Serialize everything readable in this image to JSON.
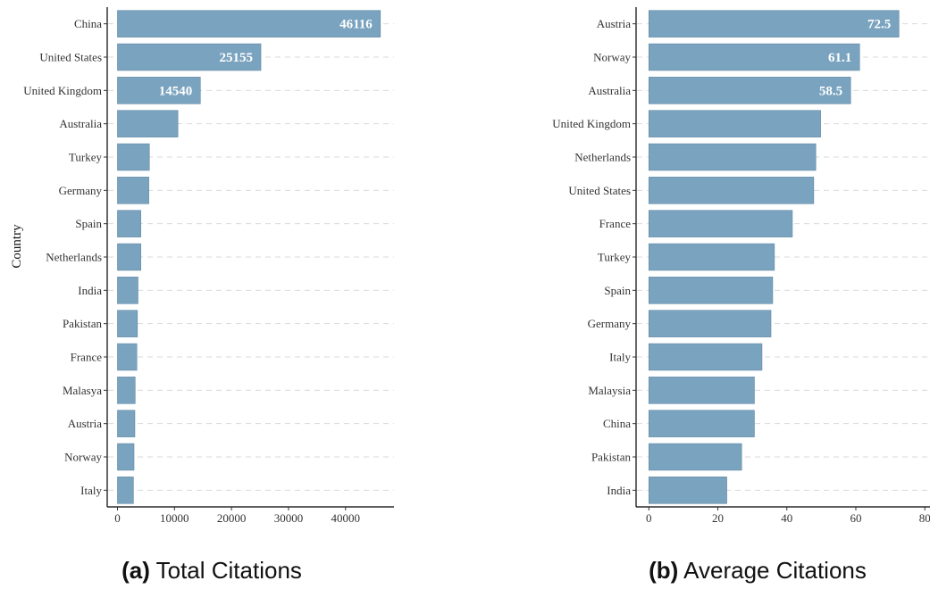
{
  "chart_data": [
    {
      "type": "bar",
      "orientation": "horizontal",
      "ylabel": "Country",
      "xlabel": "",
      "caption_letter": "(a)",
      "caption_text": " Total Citations",
      "categories": [
        "China",
        "United States",
        "United Kingdom",
        "Australia",
        "Turkey",
        "Germany",
        "Spain",
        "Netherlands",
        "India",
        "Pakistan",
        "France",
        "Malasya",
        "Austria",
        "Norway",
        "Italy"
      ],
      "values": [
        46116,
        25155,
        14540,
        10600,
        5600,
        5500,
        4100,
        4100,
        3600,
        3500,
        3400,
        3100,
        3050,
        2900,
        2800
      ],
      "data_labels": [
        "46116",
        "25155",
        "14540",
        "",
        "",
        "",
        "",
        "",
        "",
        "",
        "",
        "",
        "",
        "",
        ""
      ],
      "xticks": [
        0,
        10000,
        20000,
        30000,
        40000
      ],
      "xlim": [
        -1800,
        48500
      ],
      "grid": "horizontal-dashed"
    },
    {
      "type": "bar",
      "orientation": "horizontal",
      "ylabel": "",
      "xlabel": "",
      "caption_letter": "(b)",
      "caption_text": " Average Citations",
      "categories": [
        "Austria",
        "Norway",
        "Australia",
        "United Kingdom",
        "Netherlands",
        "United States",
        "France",
        "Turkey",
        "Spain",
        "Germany",
        "Italy",
        "Malaysia",
        "China",
        "Pakistan",
        "India"
      ],
      "values": [
        72.5,
        61.1,
        58.5,
        49.8,
        48.4,
        47.8,
        41.6,
        36.4,
        35.9,
        35.4,
        32.8,
        30.6,
        30.6,
        26.9,
        22.6
      ],
      "data_labels": [
        "72.5",
        "61.1",
        "58.5",
        "",
        "",
        "",
        "",
        "",
        "",
        "",
        "",
        "",
        "",
        "",
        ""
      ],
      "xticks": [
        0,
        20,
        40,
        60,
        80
      ],
      "xlim": [
        -3.7,
        81.5
      ],
      "grid": "horizontal-dashed"
    }
  ]
}
